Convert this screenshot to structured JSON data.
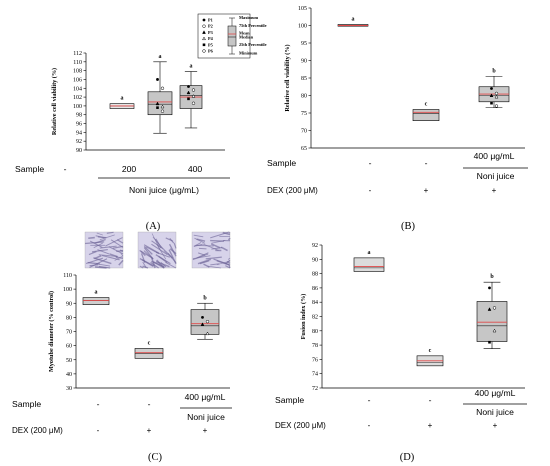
{
  "chart_data": [
    {
      "id": "A",
      "type": "box",
      "panel_label": "(A)",
      "ylabel": "Relative cell viability (%)",
      "ylim": [
        90,
        112
      ],
      "yticks": [
        90,
        92,
        94,
        96,
        98,
        100,
        102,
        104,
        106,
        108,
        110,
        112
      ],
      "categories": [
        "control",
        "noni_200",
        "noni_400"
      ],
      "boxes": [
        {
          "min": 99.4,
          "q1": 99.4,
          "median": 100.0,
          "mean": 100.0,
          "q3": 100.5,
          "max": 100.5,
          "letter": "a",
          "box_color": "#e6e6e6",
          "points": []
        },
        {
          "min": 93.8,
          "q1": 98.0,
          "median": 100.4,
          "mean": 100.9,
          "q3": 103.2,
          "max": 110.0,
          "letter": "a",
          "box_color": "#c6c6c6",
          "points": [
            106.0,
            104.0,
            100.5,
            99.8,
            99.6,
            98.8
          ]
        },
        {
          "min": 95.0,
          "q1": 99.4,
          "median": 102.4,
          "mean": 102.0,
          "q3": 104.6,
          "max": 107.8,
          "letter": "a",
          "box_color": "#c6c6c6",
          "points": [
            104.4,
            103.6,
            103.0,
            102.2,
            101.6,
            100.6
          ]
        }
      ],
      "rows": [
        {
          "label": "Sample",
          "cells": [
            "-",
            "200",
            "400"
          ]
        }
      ],
      "bracket_label": "Noni juice (μg/mL)",
      "legend": {
        "series": [
          "P1",
          "P2",
          "P3",
          "P4",
          "P5",
          "P6"
        ],
        "stats": [
          "Maximum",
          "75th Percentile",
          "Mean",
          "Median",
          "25th Percentile",
          "Minimum"
        ]
      }
    },
    {
      "id": "B",
      "type": "box",
      "panel_label": "(B)",
      "ylabel": "Relative cell viability (%)",
      "ylim": [
        65,
        105
      ],
      "yticks": [
        65,
        70,
        75,
        80,
        85,
        90,
        95,
        100,
        105
      ],
      "categories": [
        "control",
        "dex",
        "dex_noni"
      ],
      "boxes": [
        {
          "min": 99.8,
          "q1": 99.8,
          "median": 100.0,
          "mean": 100.0,
          "q3": 100.3,
          "max": 100.3,
          "letter": "a",
          "box_color": "#c9c9c9",
          "points": []
        },
        {
          "min": 72.8,
          "q1": 72.8,
          "median": 74.8,
          "mean": 75.2,
          "q3": 76.0,
          "max": 76.0,
          "letter": "c",
          "box_color": "#c9c9c9",
          "points": []
        },
        {
          "min": 76.5,
          "q1": 78.2,
          "median": 80.0,
          "mean": 80.4,
          "q3": 82.5,
          "max": 85.5,
          "letter": "b",
          "box_color": "#c9c9c9",
          "points": [
            82.0,
            80.6,
            80.0,
            79.6,
            77.8,
            77.0
          ]
        }
      ],
      "rows": [
        {
          "label": "Sample",
          "cells": [
            "-",
            "-",
            "400 μg/mL"
          ]
        },
        {
          "label": "DEX (200 μM)",
          "cells": [
            "-",
            "+",
            "+"
          ]
        }
      ],
      "bracket_label": "Noni juice"
    },
    {
      "id": "C",
      "type": "box",
      "panel_label": "(C)",
      "ylabel": "Myotube diameter (% control)",
      "ylim": [
        30,
        110
      ],
      "yticks": [
        30,
        40,
        50,
        60,
        70,
        80,
        90,
        100,
        110
      ],
      "categories": [
        "control",
        "dex",
        "dex_noni"
      ],
      "boxes": [
        {
          "min": 89.0,
          "q1": 89.0,
          "median": 92.0,
          "mean": 92.0,
          "q3": 94.0,
          "max": 94.0,
          "letter": "a",
          "box_color": "#cfcfcf",
          "points": []
        },
        {
          "min": 51.0,
          "q1": 51.0,
          "median": 54.5,
          "mean": 55.0,
          "q3": 58.0,
          "max": 58.0,
          "letter": "c",
          "box_color": "#cfcfcf",
          "points": []
        },
        {
          "min": 64.5,
          "q1": 68.0,
          "median": 74.0,
          "mean": 75.5,
          "q3": 85.5,
          "max": 90.0,
          "letter": "b",
          "box_color": "#c6c6c6",
          "points": [
            80.0,
            77.0,
            75.0,
            68.5
          ]
        }
      ],
      "rows": [
        {
          "label": "Sample",
          "cells": [
            "-",
            "-",
            "400 μg/mL"
          ]
        },
        {
          "label": "DEX (200 μM)",
          "cells": [
            "-",
            "+",
            "+"
          ]
        }
      ],
      "bracket_label": "Noni juice"
    },
    {
      "id": "D",
      "type": "box",
      "panel_label": "(D)",
      "ylabel": "Fusion index (%)",
      "ylim": [
        72,
        92
      ],
      "yticks": [
        72,
        74,
        76,
        78,
        80,
        82,
        84,
        86,
        88,
        90,
        92
      ],
      "categories": [
        "control",
        "dex",
        "dex_noni"
      ],
      "boxes": [
        {
          "min": 88.3,
          "q1": 88.3,
          "median": 88.8,
          "mean": 89.0,
          "q3": 90.2,
          "max": 90.2,
          "letter": "a",
          "box_color": "#dcdcdc",
          "points": []
        },
        {
          "min": 75.1,
          "q1": 75.1,
          "median": 75.6,
          "mean": 75.8,
          "q3": 76.5,
          "max": 76.5,
          "letter": "c",
          "box_color": "#dcdcdc",
          "points": []
        },
        {
          "min": 77.5,
          "q1": 78.5,
          "median": 80.7,
          "mean": 81.2,
          "q3": 84.1,
          "max": 86.8,
          "letter": "b",
          "box_color": "#c6c6c6",
          "points": [
            86.0,
            83.2,
            83.0,
            80.0,
            78.4
          ]
        }
      ],
      "rows": [
        {
          "label": "Sample",
          "cells": [
            "-",
            "-",
            "400 μg/mL"
          ]
        },
        {
          "label": "DEX (200 μM)",
          "cells": [
            "-",
            "+",
            "+"
          ]
        }
      ],
      "bracket_label": "Noni juice"
    }
  ],
  "colors": {
    "mean_line": "#e04848",
    "median_line": "#222222",
    "axis": "#000000",
    "micrograph_base": "#d7d3ea",
    "micrograph_fiber": "#6c6396"
  },
  "micrographs": {
    "panel": "C",
    "count": 3
  }
}
